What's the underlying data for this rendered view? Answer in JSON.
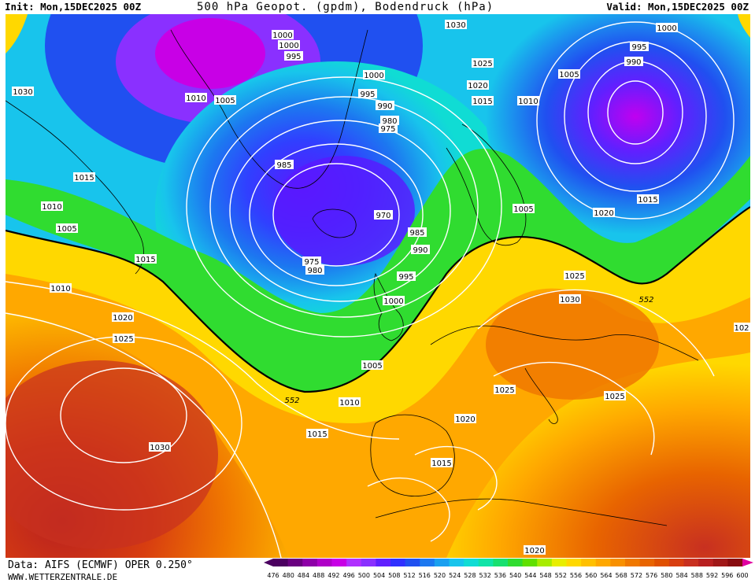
{
  "header": {
    "init": "Init: Mon,15DEC2025 00Z",
    "title": "500 hPa Geopot. (gpdm), Bodendruck (hPa)",
    "valid": "Valid: Mon,15DEC2025 00Z"
  },
  "footer": {
    "data_source": "Data: AIFS (ECMWF) OPER 0.250°",
    "website": "WWW.WETTERZENTRALE.DE"
  },
  "colorbar": {
    "ticks": [
      "476",
      "480",
      "484",
      "488",
      "492",
      "496",
      "500",
      "504",
      "508",
      "512",
      "516",
      "520",
      "524",
      "528",
      "532",
      "536",
      "540",
      "544",
      "548",
      "552",
      "556",
      "560",
      "564",
      "568",
      "572",
      "576",
      "580",
      "584",
      "588",
      "592",
      "596",
      "600"
    ],
    "colors": [
      "#4b0060",
      "#6a0080",
      "#8e00a8",
      "#b000c8",
      "#c800e6",
      "#b030ff",
      "#8a30ff",
      "#6020ff",
      "#3030ff",
      "#2050f0",
      "#1c78f0",
      "#1aa0f0",
      "#18c4ec",
      "#10dcd4",
      "#10e4a8",
      "#18e070",
      "#30dc30",
      "#60e000",
      "#a8ec00",
      "#e8ee00",
      "#ffd800",
      "#ffc000",
      "#ffa800",
      "#f89000",
      "#f07800",
      "#e86400",
      "#e05000",
      "#d83e10",
      "#c83020",
      "#b82020",
      "#a01818",
      "#880c10"
    ],
    "min_arrow_color": "#4b0060",
    "max_arrow_color": "#e000a0"
  },
  "map": {
    "highlight_isoline_label": "552",
    "pressure_labels": [
      "1000",
      "1000",
      "995",
      "1030",
      "1030",
      "1025",
      "1000",
      "1000",
      "995",
      "990",
      "1020",
      "1015",
      "1005",
      "1010",
      "1010",
      "1005",
      "995",
      "980",
      "975",
      "990",
      "985",
      "970",
      "1015",
      "1010",
      "1005",
      "1015",
      "1010",
      "985",
      "990",
      "975",
      "980",
      "995",
      "1000",
      "1005",
      "1020",
      "1025",
      "1030",
      "1030",
      "1025",
      "1025",
      "1005",
      "1010",
      "1015",
      "1020",
      "1015",
      "1020",
      "1025",
      "1015",
      "102",
      "552",
      "1020"
    ],
    "colors": {
      "land_outline": "#000000",
      "isobar": "#ffffff",
      "line_552": "#000000"
    }
  }
}
